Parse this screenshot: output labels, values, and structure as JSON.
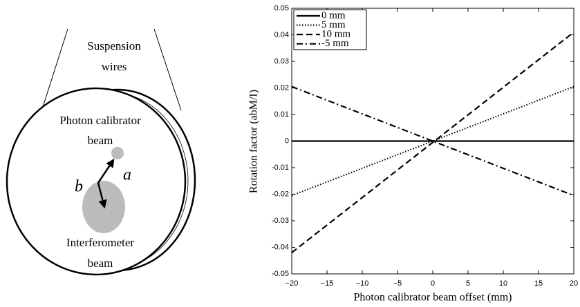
{
  "diagram": {
    "wires_label": [
      "Suspension",
      "wires"
    ],
    "pcal_label": [
      "Photon calibrator",
      "beam"
    ],
    "ifo_label": [
      "Interferometer",
      "beam"
    ],
    "vector_a": "a⃗",
    "vector_b": "b⃗"
  },
  "chart_data": {
    "type": "line",
    "xlabel": "Photon calibrator beam offset (mm)",
    "ylabel": "Rotation factor (abM/I)",
    "x": [
      -20,
      20
    ],
    "series": [
      {
        "name": "0 mm",
        "color": "#000000",
        "linestyle": "solid",
        "values": [
          0,
          0
        ]
      },
      {
        "name": "5 mm",
        "color": "#000000",
        "linestyle": "dotted",
        "values": [
          -0.0205,
          0.0205
        ]
      },
      {
        "name": "10 mm",
        "color": "#000000",
        "linestyle": "dashed",
        "values": [
          -0.042,
          0.041
        ]
      },
      {
        "name": "-5 mm",
        "color": "#000000",
        "linestyle": "dashdot",
        "values": [
          0.0205,
          -0.0205
        ]
      }
    ],
    "xlim": [
      -20,
      20
    ],
    "xticks": [
      {
        "value": -20,
        "label": "−20"
      },
      {
        "value": -15,
        "label": "−15"
      },
      {
        "value": -10,
        "label": "−10"
      },
      {
        "value": -5,
        "label": "−5"
      },
      0,
      5,
      10,
      15,
      20
    ],
    "ylim": [
      -0.05,
      0.05
    ],
    "yticks": [
      -0.05,
      -0.04,
      -0.03,
      -0.02,
      -0.01,
      0,
      0.01,
      0.02,
      0.03,
      0.04,
      0.05
    ],
    "legend": "upper left",
    "grid": false
  }
}
